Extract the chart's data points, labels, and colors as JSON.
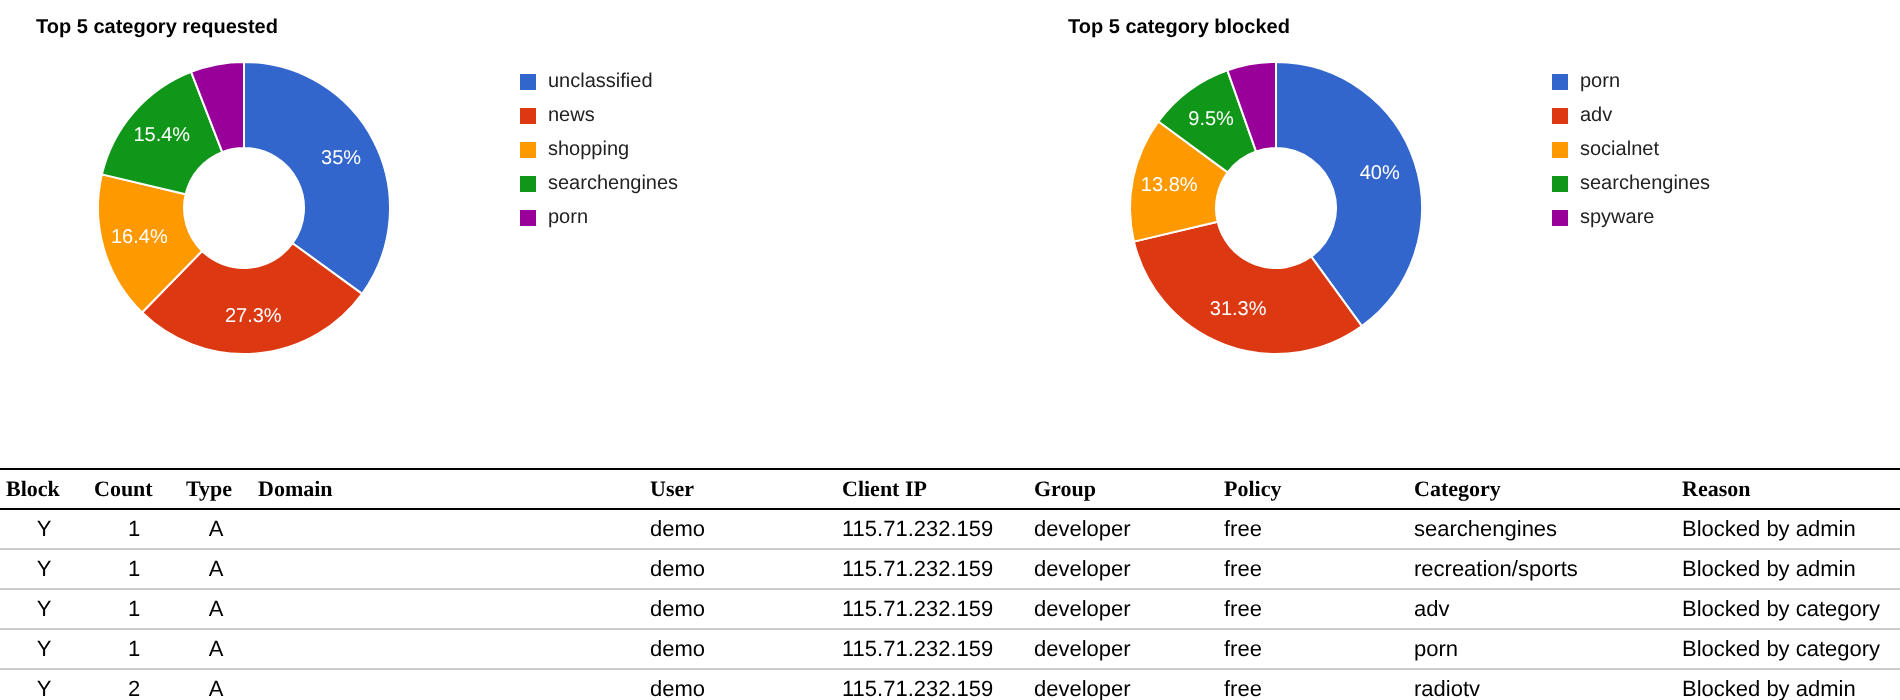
{
  "chart_data": [
    {
      "type": "donut",
      "title": "Top 5 category requested",
      "categories": [
        "unclassified",
        "news",
        "shopping",
        "searchengines",
        "porn"
      ],
      "values": [
        35,
        27.3,
        16.4,
        15.4,
        5.9
      ],
      "colors": [
        "#3366cc",
        "#dc3912",
        "#ff9900",
        "#109618",
        "#990099"
      ],
      "value_labels": [
        "35%",
        "27.3%",
        "16.4%",
        "15.4%",
        null
      ],
      "legend": "right"
    },
    {
      "type": "donut",
      "title": "Top 5 category blocked",
      "categories": [
        "porn",
        "adv",
        "socialnet",
        "searchengines",
        "spyware"
      ],
      "values": [
        40,
        31.3,
        13.8,
        9.5,
        5.4
      ],
      "colors": [
        "#3366cc",
        "#dc3912",
        "#ff9900",
        "#109618",
        "#990099"
      ],
      "value_labels": [
        "40%",
        "31.3%",
        "13.8%",
        "9.5%",
        null
      ],
      "legend": "right"
    },
    {
      "type": "other",
      "annotations": [
        "Block",
        "Count",
        "Type",
        "Domain",
        "User",
        "Client IP",
        "Group",
        "Policy",
        "Category",
        "Reason",
        "Y",
        "1",
        "A",
        "demo",
        "115.71.232.159",
        "developer",
        "free",
        "searchengines",
        "Blocked by admin",
        "Y",
        "1",
        "A",
        "demo",
        "115.71.232.159",
        "developer",
        "free",
        "recreation/sports",
        "Blocked by admin",
        "Y",
        "1",
        "A",
        "demo",
        "115.71.232.159",
        "developer",
        "free",
        "adv",
        "Blocked by category",
        "Y",
        "1",
        "A",
        "demo",
        "115.71.232.159",
        "developer",
        "free",
        "porn",
        "Blocked by category",
        "Y",
        "2",
        "A",
        "demo",
        "115.71.232.159",
        "developer",
        "free",
        "radiotv",
        "Blocked by admin"
      ]
    }
  ]
}
